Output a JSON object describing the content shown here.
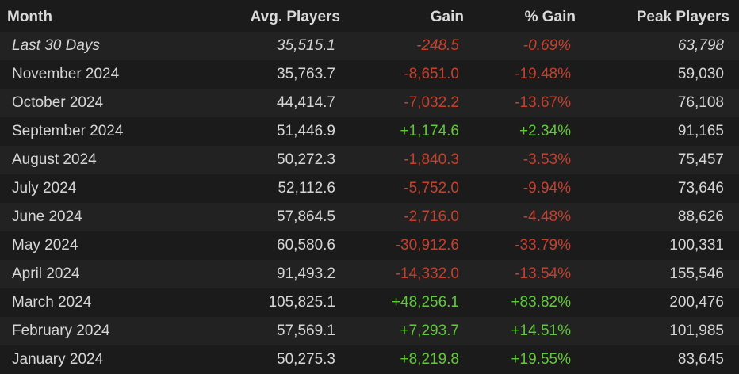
{
  "table": {
    "headers": {
      "month": "Month",
      "avg_players": "Avg. Players",
      "gain": "Gain",
      "pct_gain": "% Gain",
      "peak_players": "Peak Players"
    },
    "rows": [
      {
        "month": "Last 30 Days",
        "avg": "35,515.1",
        "gain": "-248.5",
        "pct": "-0.69%",
        "peak": "63,798",
        "trend": "neg",
        "italic": true
      },
      {
        "month": "November 2024",
        "avg": "35,763.7",
        "gain": "-8,651.0",
        "pct": "-19.48%",
        "peak": "59,030",
        "trend": "neg",
        "italic": false
      },
      {
        "month": "October 2024",
        "avg": "44,414.7",
        "gain": "-7,032.2",
        "pct": "-13.67%",
        "peak": "76,108",
        "trend": "neg",
        "italic": false
      },
      {
        "month": "September 2024",
        "avg": "51,446.9",
        "gain": "+1,174.6",
        "pct": "+2.34%",
        "peak": "91,165",
        "trend": "pos",
        "italic": false
      },
      {
        "month": "August 2024",
        "avg": "50,272.3",
        "gain": "-1,840.3",
        "pct": "-3.53%",
        "peak": "75,457",
        "trend": "neg",
        "italic": false
      },
      {
        "month": "July 2024",
        "avg": "52,112.6",
        "gain": "-5,752.0",
        "pct": "-9.94%",
        "peak": "73,646",
        "trend": "neg",
        "italic": false
      },
      {
        "month": "June 2024",
        "avg": "57,864.5",
        "gain": "-2,716.0",
        "pct": "-4.48%",
        "peak": "88,626",
        "trend": "neg",
        "italic": false
      },
      {
        "month": "May 2024",
        "avg": "60,580.6",
        "gain": "-30,912.6",
        "pct": "-33.79%",
        "peak": "100,331",
        "trend": "neg",
        "italic": false
      },
      {
        "month": "April 2024",
        "avg": "91,493.2",
        "gain": "-14,332.0",
        "pct": "-13.54%",
        "peak": "155,546",
        "trend": "neg",
        "italic": false
      },
      {
        "month": "March 2024",
        "avg": "105,825.1",
        "gain": "+48,256.1",
        "pct": "+83.82%",
        "peak": "200,476",
        "trend": "pos",
        "italic": false
      },
      {
        "month": "February 2024",
        "avg": "57,569.1",
        "gain": "+7,293.7",
        "pct": "+14.51%",
        "peak": "101,985",
        "trend": "pos",
        "italic": false
      },
      {
        "month": "January 2024",
        "avg": "50,275.3",
        "gain": "+8,219.8",
        "pct": "+19.55%",
        "peak": "83,645",
        "trend": "pos",
        "italic": false
      }
    ]
  },
  "colors": {
    "background": "#1b1b1b",
    "row_alt": "#222222",
    "text": "#d6d6d6",
    "negative": "#c5412e",
    "positive": "#5fc93a"
  }
}
